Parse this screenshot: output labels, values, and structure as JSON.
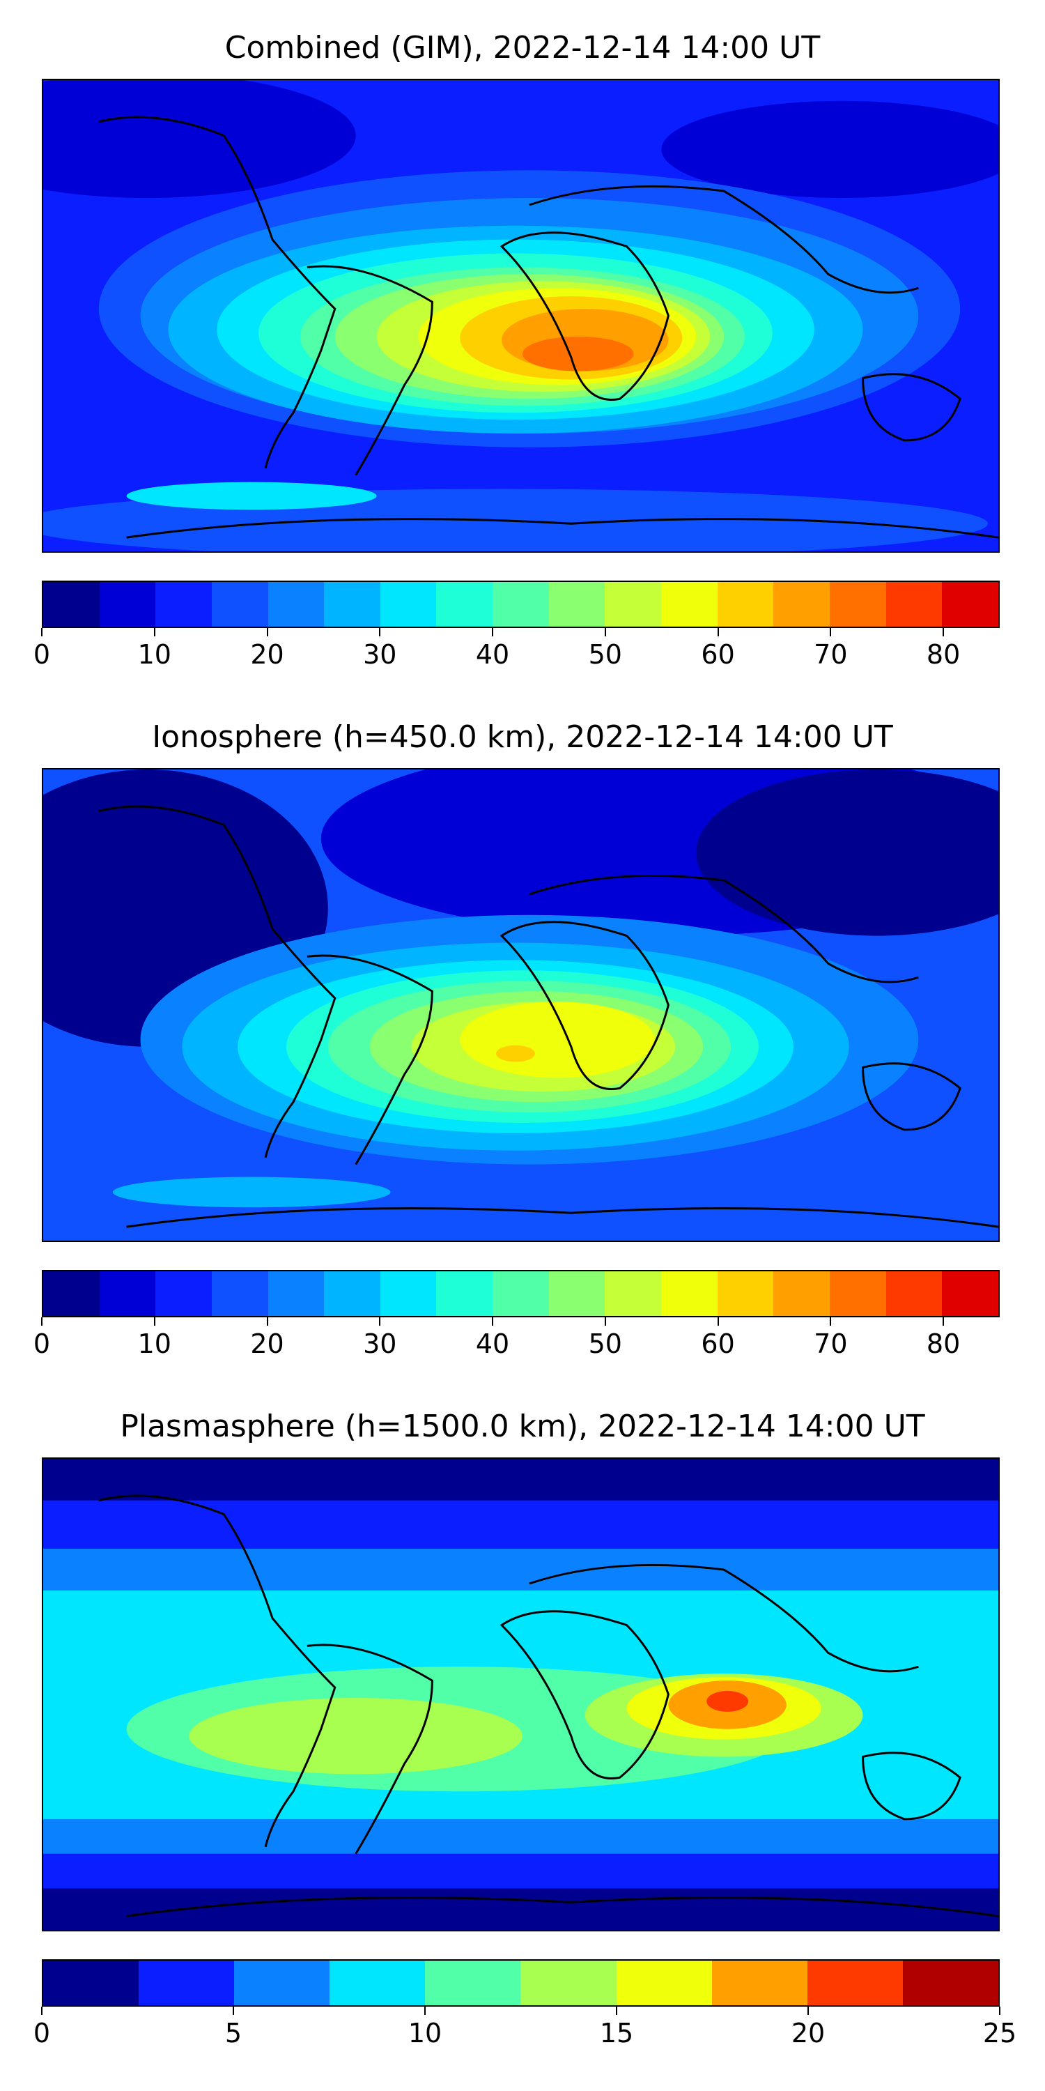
{
  "panels": [
    {
      "title": "Combined (GIM), 2022-12-14 14:00 UT",
      "colorbar": {
        "ticks": [
          "0",
          "10",
          "20",
          "30",
          "40",
          "50",
          "60",
          "70",
          "80"
        ],
        "range": [
          0,
          85
        ],
        "levels": 17,
        "colors": [
          "#00008f",
          "#0000d6",
          "#0a1eff",
          "#0f50ff",
          "#0a82ff",
          "#00b4ff",
          "#00e6ff",
          "#1effd8",
          "#50ffa8",
          "#8aff70",
          "#c4ff38",
          "#f0ff0a",
          "#ffd000",
          "#ffa000",
          "#ff7000",
          "#ff3a00",
          "#e00000",
          "#980000"
        ]
      }
    },
    {
      "title": "Ionosphere  (h=450.0 km), 2022-12-14 14:00 UT",
      "colorbar": {
        "ticks": [
          "0",
          "10",
          "20",
          "30",
          "40",
          "50",
          "60",
          "70",
          "80"
        ],
        "range": [
          0,
          85
        ],
        "levels": 17,
        "colors": [
          "#00008f",
          "#0000d6",
          "#0a1eff",
          "#0f50ff",
          "#0a82ff",
          "#00b4ff",
          "#00e6ff",
          "#1effd8",
          "#50ffa8",
          "#8aff70",
          "#c4ff38",
          "#f0ff0a",
          "#ffd000",
          "#ffa000",
          "#ff7000",
          "#ff3a00",
          "#e00000",
          "#980000"
        ]
      }
    },
    {
      "title": "Plasmasphere (h=1500.0 km), 2022-12-14 14:00 UT",
      "colorbar": {
        "ticks": [
          "0",
          "5",
          "10",
          "15",
          "20",
          "25"
        ],
        "range": [
          0,
          25
        ],
        "levels": 10,
        "colors": [
          "#00008f",
          "#0a1eff",
          "#0a82ff",
          "#00e6ff",
          "#50ffa8",
          "#a8ff50",
          "#f0ff0a",
          "#ffa000",
          "#ff3a00",
          "#b00000"
        ]
      }
    }
  ]
}
